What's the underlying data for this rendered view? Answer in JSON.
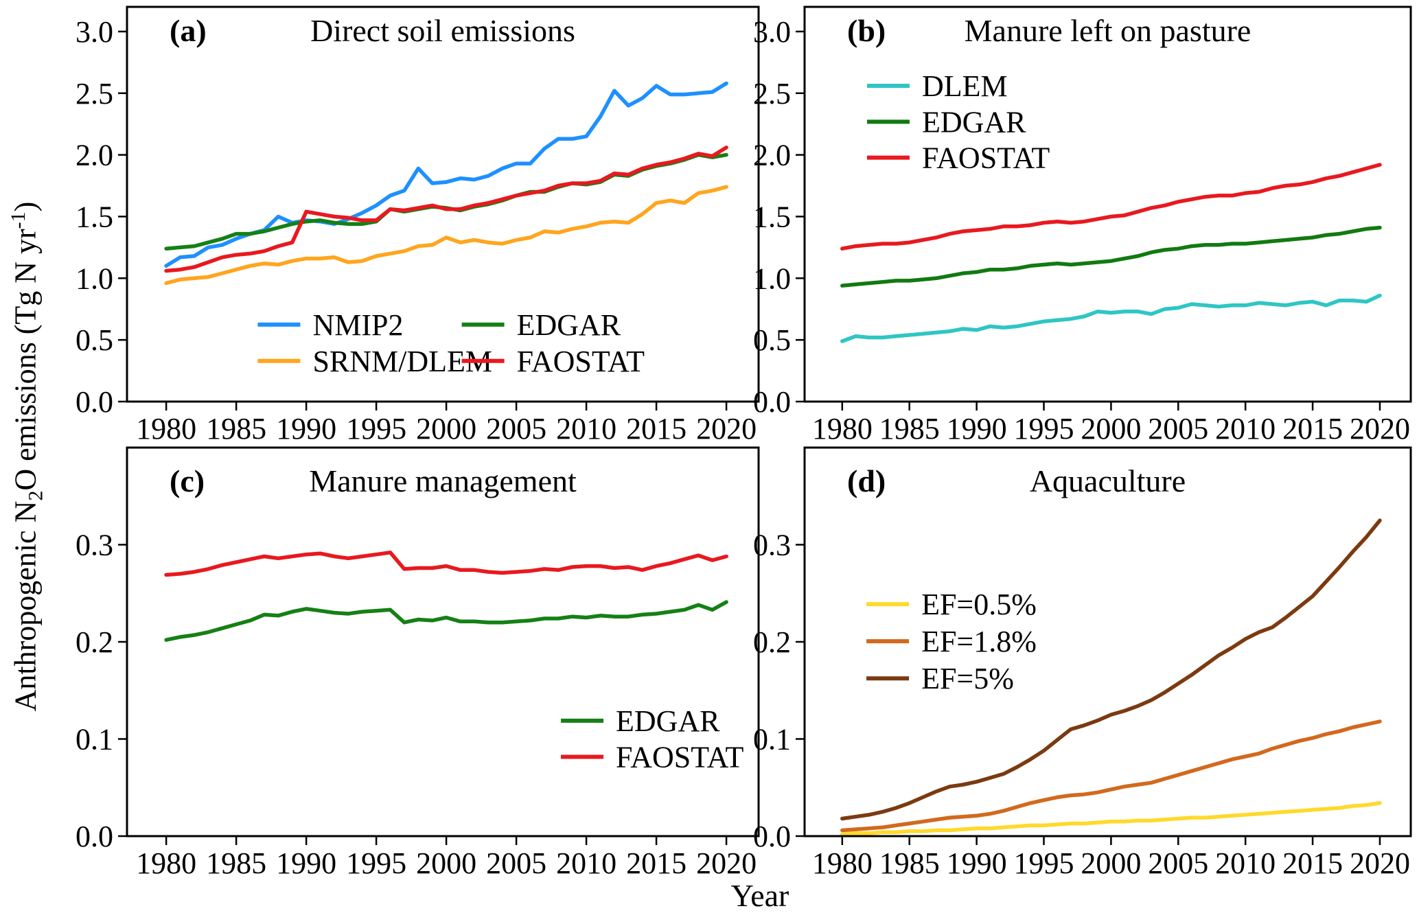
{
  "figure": {
    "ylabel": {
      "pre": "Anthropogenic N",
      "sub": "2",
      "mid": "O emissions (Tg N yr",
      "sup": "-1",
      "post": ")"
    },
    "xlabel": "Year",
    "background": "#ffffff",
    "axis_color": "#000000"
  },
  "years": [
    1980,
    1981,
    1982,
    1983,
    1984,
    1985,
    1986,
    1987,
    1988,
    1989,
    1990,
    1991,
    1992,
    1993,
    1994,
    1995,
    1996,
    1997,
    1998,
    1999,
    2000,
    2001,
    2002,
    2003,
    2004,
    2005,
    2006,
    2007,
    2008,
    2009,
    2010,
    2011,
    2012,
    2013,
    2014,
    2015,
    2016,
    2017,
    2018,
    2019,
    2020
  ],
  "chart_data": [
    {
      "id": "a",
      "panel_label": "(a)",
      "title": "Direct soil emissions",
      "type": "line",
      "xlim": [
        1977.2,
        2022.3
      ],
      "ylim": [
        0,
        3.2
      ],
      "grid": false,
      "xticks": [
        1980,
        1985,
        1990,
        1995,
        2000,
        2005,
        2010,
        2015,
        2020
      ],
      "ytick_values": [
        0.0,
        0.5,
        1.0,
        1.5,
        2.0,
        2.5,
        3.0
      ],
      "ytick_labels": [
        "0.0",
        "0.5",
        "1.0",
        "1.5",
        "2.0",
        "2.5",
        "3.0"
      ],
      "legend": {
        "position": "lower center",
        "ncol": 2,
        "x": 0.207,
        "y": 0.805,
        "col_offset": 0.323,
        "row_offset": 0.092
      },
      "series": [
        {
          "name": "NMIP2",
          "color": "#1E90FF",
          "values": [
            1.1,
            1.17,
            1.18,
            1.25,
            1.27,
            1.32,
            1.36,
            1.39,
            1.5,
            1.45,
            1.47,
            1.46,
            1.44,
            1.48,
            1.53,
            1.59,
            1.67,
            1.71,
            1.89,
            1.77,
            1.78,
            1.81,
            1.8,
            1.83,
            1.89,
            1.93,
            1.93,
            2.05,
            2.13,
            2.13,
            2.15,
            2.31,
            2.52,
            2.4,
            2.46,
            2.56,
            2.49,
            2.49,
            2.5,
            2.51,
            2.58
          ]
        },
        {
          "name": "SRNM/DLEM",
          "color": "#FFA51E",
          "values": [
            0.96,
            0.99,
            1.0,
            1.01,
            1.04,
            1.07,
            1.1,
            1.12,
            1.11,
            1.14,
            1.16,
            1.16,
            1.17,
            1.13,
            1.14,
            1.18,
            1.2,
            1.22,
            1.26,
            1.27,
            1.33,
            1.29,
            1.31,
            1.29,
            1.28,
            1.31,
            1.33,
            1.38,
            1.37,
            1.4,
            1.42,
            1.45,
            1.46,
            1.45,
            1.52,
            1.61,
            1.63,
            1.61,
            1.69,
            1.71,
            1.74
          ]
        },
        {
          "name": "EDGAR",
          "color": "#158015",
          "values": [
            1.24,
            1.25,
            1.26,
            1.29,
            1.32,
            1.36,
            1.36,
            1.38,
            1.41,
            1.44,
            1.46,
            1.47,
            1.45,
            1.44,
            1.44,
            1.46,
            1.56,
            1.54,
            1.56,
            1.58,
            1.57,
            1.55,
            1.58,
            1.6,
            1.63,
            1.67,
            1.7,
            1.7,
            1.74,
            1.77,
            1.76,
            1.78,
            1.84,
            1.83,
            1.88,
            1.91,
            1.93,
            1.96,
            2.0,
            1.98,
            2.0
          ]
        },
        {
          "name": "FAOSTAT",
          "color": "#E8191F",
          "values": [
            1.06,
            1.07,
            1.09,
            1.13,
            1.17,
            1.19,
            1.2,
            1.22,
            1.26,
            1.29,
            1.54,
            1.52,
            1.5,
            1.49,
            1.47,
            1.47,
            1.56,
            1.55,
            1.57,
            1.59,
            1.56,
            1.56,
            1.59,
            1.61,
            1.64,
            1.67,
            1.69,
            1.71,
            1.75,
            1.77,
            1.77,
            1.79,
            1.85,
            1.84,
            1.89,
            1.92,
            1.94,
            1.97,
            2.01,
            1.99,
            2.06
          ]
        }
      ]
    },
    {
      "id": "b",
      "panel_label": "(b)",
      "title": "Manure left on pasture",
      "type": "line",
      "xlim": [
        1977.2,
        2022.3
      ],
      "ylim": [
        0,
        3.2
      ],
      "grid": false,
      "xticks": [
        1980,
        1985,
        1990,
        1995,
        2000,
        2005,
        2010,
        2015,
        2020
      ],
      "ytick_values": [
        0.0,
        0.5,
        1.0,
        1.5,
        2.0,
        2.5,
        3.0
      ],
      "ytick_labels": [
        "0.0",
        "0.5",
        "1.0",
        "1.5",
        "2.0",
        "2.5",
        "3.0"
      ],
      "legend": {
        "position": "upper left",
        "ncol": 1,
        "x": 0.103,
        "y": 0.2,
        "col_offset": 0,
        "row_offset": 0.091
      },
      "series": [
        {
          "name": "DLEM",
          "color": "#2FC5C5",
          "values": [
            0.49,
            0.53,
            0.52,
            0.52,
            0.53,
            0.54,
            0.55,
            0.56,
            0.57,
            0.59,
            0.58,
            0.61,
            0.6,
            0.61,
            0.63,
            0.65,
            0.66,
            0.67,
            0.69,
            0.73,
            0.72,
            0.73,
            0.73,
            0.71,
            0.75,
            0.76,
            0.79,
            0.78,
            0.77,
            0.78,
            0.78,
            0.8,
            0.79,
            0.78,
            0.8,
            0.81,
            0.78,
            0.82,
            0.82,
            0.81,
            0.86
          ]
        },
        {
          "name": "EDGAR",
          "color": "#117A11",
          "values": [
            0.94,
            0.95,
            0.96,
            0.97,
            0.98,
            0.98,
            0.99,
            1.0,
            1.02,
            1.04,
            1.05,
            1.07,
            1.07,
            1.08,
            1.1,
            1.11,
            1.12,
            1.11,
            1.12,
            1.13,
            1.14,
            1.16,
            1.18,
            1.21,
            1.23,
            1.24,
            1.26,
            1.27,
            1.27,
            1.28,
            1.28,
            1.29,
            1.3,
            1.31,
            1.32,
            1.33,
            1.35,
            1.36,
            1.38,
            1.4,
            1.41
          ]
        },
        {
          "name": "FAOSTAT",
          "color": "#E8191F",
          "values": [
            1.24,
            1.26,
            1.27,
            1.28,
            1.28,
            1.29,
            1.31,
            1.33,
            1.36,
            1.38,
            1.39,
            1.4,
            1.42,
            1.42,
            1.43,
            1.45,
            1.46,
            1.45,
            1.46,
            1.48,
            1.5,
            1.51,
            1.54,
            1.57,
            1.59,
            1.62,
            1.64,
            1.66,
            1.67,
            1.67,
            1.69,
            1.7,
            1.73,
            1.75,
            1.76,
            1.78,
            1.81,
            1.83,
            1.86,
            1.89,
            1.92
          ]
        }
      ]
    },
    {
      "id": "c",
      "panel_label": "(c)",
      "title": "Manure management",
      "type": "line",
      "xlim": [
        1977.2,
        2022.3
      ],
      "ylim": [
        0,
        0.4
      ],
      "grid": false,
      "xticks": [
        1980,
        1985,
        1990,
        1995,
        2000,
        2005,
        2010,
        2015,
        2020
      ],
      "ytick_values": [
        0.0,
        0.1,
        0.2,
        0.3
      ],
      "ytick_labels": [
        "0.0",
        "0.1",
        "0.2",
        "0.3"
      ],
      "legend": {
        "position": "lower right",
        "ncol": 1,
        "x": 0.687,
        "y": 0.703,
        "col_offset": 0,
        "row_offset": 0.093
      },
      "series": [
        {
          "name": "EDGAR",
          "color": "#158015",
          "values": [
            0.202,
            0.205,
            0.207,
            0.21,
            0.214,
            0.218,
            0.222,
            0.228,
            0.227,
            0.231,
            0.234,
            0.232,
            0.23,
            0.229,
            0.231,
            0.232,
            0.233,
            0.22,
            0.223,
            0.222,
            0.225,
            0.221,
            0.221,
            0.22,
            0.22,
            0.221,
            0.222,
            0.224,
            0.224,
            0.226,
            0.225,
            0.227,
            0.226,
            0.226,
            0.228,
            0.229,
            0.231,
            0.233,
            0.238,
            0.233,
            0.241
          ]
        },
        {
          "name": "FAOSTAT",
          "color": "#E8191F",
          "values": [
            0.269,
            0.27,
            0.272,
            0.275,
            0.279,
            0.282,
            0.285,
            0.288,
            0.286,
            0.288,
            0.29,
            0.291,
            0.288,
            0.286,
            0.288,
            0.29,
            0.292,
            0.275,
            0.276,
            0.276,
            0.278,
            0.274,
            0.274,
            0.272,
            0.271,
            0.272,
            0.273,
            0.275,
            0.274,
            0.277,
            0.278,
            0.278,
            0.276,
            0.277,
            0.274,
            0.278,
            0.281,
            0.285,
            0.289,
            0.284,
            0.288
          ]
        }
      ]
    },
    {
      "id": "d",
      "panel_label": "(d)",
      "title": "Aquaculture",
      "type": "line",
      "xlim": [
        1977.2,
        2022.3
      ],
      "ylim": [
        0,
        0.4
      ],
      "grid": false,
      "xticks": [
        1980,
        1985,
        1990,
        1995,
        2000,
        2005,
        2010,
        2015,
        2020
      ],
      "ytick_values": [
        0.0,
        0.1,
        0.2,
        0.3
      ],
      "ytick_labels": [
        "0.0",
        "0.1",
        "0.2",
        "0.3"
      ],
      "legend": {
        "position": "center left",
        "ncol": 1,
        "x": 0.102,
        "y": 0.403,
        "col_offset": 0,
        "row_offset": 0.0955
      },
      "series": [
        {
          "name": "EF=0.5%",
          "color": "#FFD92B",
          "values": [
            0.002,
            0.003,
            0.003,
            0.004,
            0.004,
            0.005,
            0.005,
            0.006,
            0.006,
            0.007,
            0.008,
            0.008,
            0.009,
            0.01,
            0.011,
            0.011,
            0.012,
            0.013,
            0.013,
            0.014,
            0.015,
            0.015,
            0.016,
            0.016,
            0.017,
            0.018,
            0.019,
            0.019,
            0.02,
            0.021,
            0.022,
            0.023,
            0.024,
            0.025,
            0.026,
            0.027,
            0.028,
            0.029,
            0.031,
            0.032,
            0.034
          ]
        },
        {
          "name": "EF=1.8%",
          "color": "#D2691E",
          "values": [
            0.006,
            0.007,
            0.008,
            0.009,
            0.011,
            0.013,
            0.015,
            0.017,
            0.019,
            0.02,
            0.021,
            0.023,
            0.026,
            0.03,
            0.034,
            0.037,
            0.04,
            0.042,
            0.043,
            0.045,
            0.048,
            0.051,
            0.053,
            0.055,
            0.059,
            0.063,
            0.067,
            0.071,
            0.075,
            0.079,
            0.082,
            0.085,
            0.09,
            0.094,
            0.098,
            0.101,
            0.105,
            0.108,
            0.112,
            0.115,
            0.118
          ]
        },
        {
          "name": "EF=5%",
          "color": "#7B3A10",
          "values": [
            0.018,
            0.02,
            0.022,
            0.025,
            0.029,
            0.034,
            0.04,
            0.046,
            0.051,
            0.053,
            0.056,
            0.06,
            0.064,
            0.071,
            0.079,
            0.088,
            0.099,
            0.11,
            0.114,
            0.119,
            0.125,
            0.129,
            0.134,
            0.14,
            0.148,
            0.157,
            0.166,
            0.176,
            0.186,
            0.194,
            0.203,
            0.21,
            0.215,
            0.225,
            0.236,
            0.247,
            0.262,
            0.277,
            0.293,
            0.308,
            0.325
          ]
        }
      ]
    }
  ]
}
